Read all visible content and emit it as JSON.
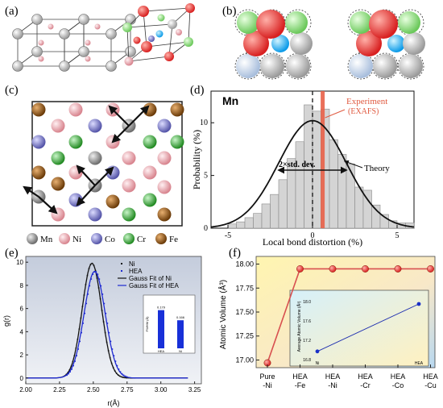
{
  "labels": {
    "a": "(a)",
    "b": "(b)",
    "c": "(c)",
    "d": "(d)",
    "e": "(e)",
    "f": "(f)"
  },
  "panel_c": {
    "legend": [
      {
        "symbol": "Mn",
        "color": "#8c8c8c"
      },
      {
        "symbol": "Ni",
        "color": "#f0a8b0"
      },
      {
        "symbol": "Co",
        "color": "#8080c8"
      },
      {
        "symbol": "Cr",
        "color": "#40b040"
      },
      {
        "symbol": "Fe",
        "color": "#9a5a18"
      }
    ]
  },
  "panel_d": {
    "element": "Mn",
    "experiment_label_1": "Experiment",
    "experiment_label_2": "(EXAFS)",
    "theory_label": "Theory",
    "std_label": "2×std. dev.",
    "xlabel": "Local bond distortion (%)",
    "ylabel": "Probability (%)",
    "xticks": [
      "-5",
      "0",
      "5"
    ],
    "yticks": [
      "0",
      "5",
      "10"
    ]
  },
  "panel_e": {
    "xlabel": "r(Å)",
    "ylabel": "g(r)",
    "xticks": [
      "2.00",
      "2.25",
      "2.50",
      "2.75",
      "3.00",
      "3.25"
    ],
    "yticks": [
      "0",
      "2",
      "4",
      "6",
      "8",
      "10"
    ],
    "legend": [
      "Ni",
      "HEA",
      "Gauss Fit of Ni",
      "Gauss Fit of HEA"
    ],
    "inset_categories": [
      "HEA",
      "Ni"
    ],
    "inset_value_labels": [
      "0.179",
      "0.166"
    ],
    "inset_ylabel": "FWHM (Å)"
  },
  "panel_f": {
    "ylabel": "Atomic Volume (Å³)",
    "yticks": [
      "17.00",
      "17.25",
      "17.50",
      "17.75",
      "18.00"
    ],
    "categories": [
      [
        "Pure",
        "-Ni"
      ],
      [
        "HEA",
        "-Fe"
      ],
      [
        "HEA",
        "-Ni"
      ],
      [
        "HEA",
        "-Cr"
      ],
      [
        "HEA",
        "-Co"
      ],
      [
        "HEA",
        "-Cu"
      ]
    ],
    "inset_categories": [
      "Ni",
      "HEA"
    ],
    "inset_ylabel": "Average Atomic Volume (Å³)",
    "inset_yticks": [
      "16.8",
      "17.2",
      "17.6",
      "18.0"
    ]
  },
  "chart_data": [
    {
      "type": "bar",
      "panel": "d",
      "xlabel": "Local bond distortion (%)",
      "ylabel": "Probability (%)",
      "xlim": [
        -6,
        6
      ],
      "ylim": [
        0,
        13
      ],
      "bin_centers": [
        -4.75,
        -4.25,
        -3.75,
        -3.25,
        -2.75,
        -2.25,
        -1.75,
        -1.25,
        -0.75,
        -0.25,
        0.25,
        0.75,
        1.25,
        1.75,
        2.25,
        2.75,
        3.25,
        3.75,
        4.25,
        4.75,
        5.25,
        5.75
      ],
      "values": [
        0.4,
        0.6,
        1.0,
        1.4,
        2.3,
        3.2,
        4.6,
        6.6,
        8.2,
        11.7,
        11.1,
        11.3,
        8.4,
        7.0,
        6.1,
        3.9,
        3.6,
        2.2,
        1.3,
        0.7,
        0.5,
        0.5
      ],
      "theory_gaussian": {
        "mean": 0.0,
        "sigma": 2.0,
        "peak": 10.2
      },
      "experiment_x": 0.6
    },
    {
      "type": "line",
      "panel": "e",
      "xlabel": "r(Å)",
      "ylabel": "g(r)",
      "xlim": [
        2.0,
        3.3
      ],
      "ylim": [
        -0.5,
        10.5
      ],
      "series": [
        {
          "name": "Gauss Fit of Ni",
          "mean": 2.49,
          "sigma": 0.072,
          "peak": 9.9
        },
        {
          "name": "Gauss Fit of HEA",
          "mean": 2.51,
          "sigma": 0.078,
          "peak": 9.2
        }
      ]
    },
    {
      "type": "bar",
      "panel": "e-inset",
      "categories": [
        "HEA",
        "Ni"
      ],
      "values": [
        0.179,
        0.166
      ],
      "ylabel": "FWHM (Å)"
    },
    {
      "type": "line",
      "panel": "f",
      "ylabel": "Atomic Volume (Å³)",
      "categories": [
        "Pure-Ni",
        "HEA-Fe",
        "HEA-Ni",
        "HEA-Cr",
        "HEA-Co",
        "HEA-Cu"
      ],
      "values": [
        16.97,
        17.95,
        17.95,
        17.95,
        17.95,
        17.95
      ],
      "ylim": [
        16.92,
        18.08
      ]
    },
    {
      "type": "line",
      "panel": "f-inset",
      "categories": [
        "Ni",
        "HEA"
      ],
      "values": [
        16.97,
        17.95
      ],
      "ylabel": "Average Atomic Volume (Å³)",
      "ylim": [
        16.8,
        18.1
      ]
    }
  ]
}
